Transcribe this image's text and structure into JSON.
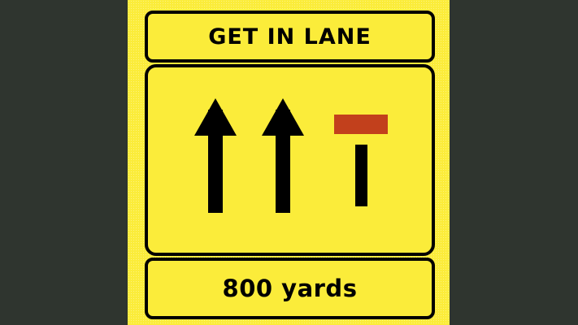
{
  "sign": {
    "title": "GET IN LANE",
    "distance": "800 yards",
    "lanes": [
      {
        "type": "arrow-ahead"
      },
      {
        "type": "arrow-ahead"
      },
      {
        "type": "lane-closed"
      }
    ],
    "colors": {
      "background": "#fbec3a",
      "border": "#000000",
      "closure_bar": "#c2401c",
      "surround": "#2f352f"
    }
  }
}
